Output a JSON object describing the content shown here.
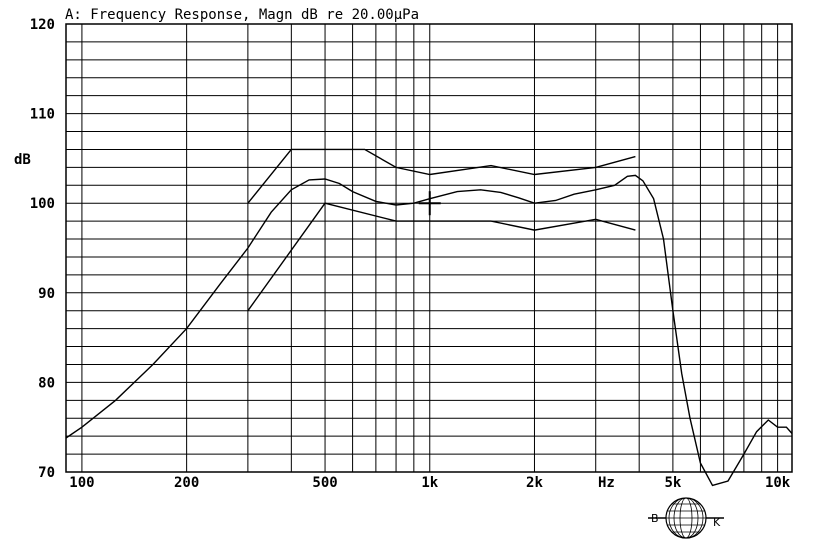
{
  "chart_data": {
    "type": "line",
    "title": "A: Frequency Response, Magn dB re 20.00μPa",
    "ylabel": "dB",
    "xlabel": "Hz",
    "x_scale": "log",
    "xlim": [
      90,
      11000
    ],
    "ylim": [
      70,
      120
    ],
    "grid": true,
    "y_ticks": [
      70,
      80,
      90,
      100,
      110,
      120
    ],
    "x_ticks": [
      {
        "value": 100,
        "label": "100"
      },
      {
        "value": 200,
        "label": "200"
      },
      {
        "value": 500,
        "label": "500"
      },
      {
        "value": 1000,
        "label": "1k"
      },
      {
        "value": 2000,
        "label": "2k"
      },
      {
        "value": 5000,
        "label": "5k"
      },
      {
        "value": 10000,
        "label": "10k"
      }
    ],
    "series": [
      {
        "x": [
          90,
          100,
          125,
          160,
          200,
          250,
          300,
          350,
          400,
          450,
          500,
          550,
          600,
          700,
          800,
          900,
          1000,
          1200,
          1400,
          1600,
          1800,
          2000,
          2300,
          2600,
          3000,
          3400,
          3700,
          3900,
          4100,
          4400,
          4700,
          5000,
          5300,
          5600,
          6000,
          6500,
          7200,
          8000,
          8700,
          9400,
          10000,
          10600,
          11000
        ],
        "values": [
          73.8,
          75,
          78,
          82,
          86,
          91,
          95,
          99,
          101.5,
          102.6,
          102.7,
          102.2,
          101.3,
          100.2,
          99.8,
          100,
          100.5,
          101.3,
          101.5,
          101.2,
          100.6,
          100,
          100.3,
          101,
          101.5,
          102,
          103,
          103.1,
          102.5,
          100.5,
          96,
          88,
          81,
          76,
          71,
          68.5,
          69,
          72,
          74.5,
          75.8,
          75,
          75,
          74.3
        ]
      },
      {
        "x": [
          300,
          400,
          650,
          800,
          1000,
          1500,
          2000,
          3000,
          3900
        ],
        "values": [
          100,
          106,
          106,
          104,
          103.2,
          104.2,
          103.2,
          104,
          105.2
        ]
      },
      {
        "x": [
          300,
          500,
          800,
          1000,
          1500,
          2000,
          3000,
          3900
        ],
        "values": [
          88,
          100,
          98,
          98,
          98,
          97,
          98.2,
          97
        ]
      }
    ],
    "annotations": [
      "cursor crosshair near 1k, 100 dB"
    ],
    "logo_text": [
      "B",
      "K"
    ]
  }
}
